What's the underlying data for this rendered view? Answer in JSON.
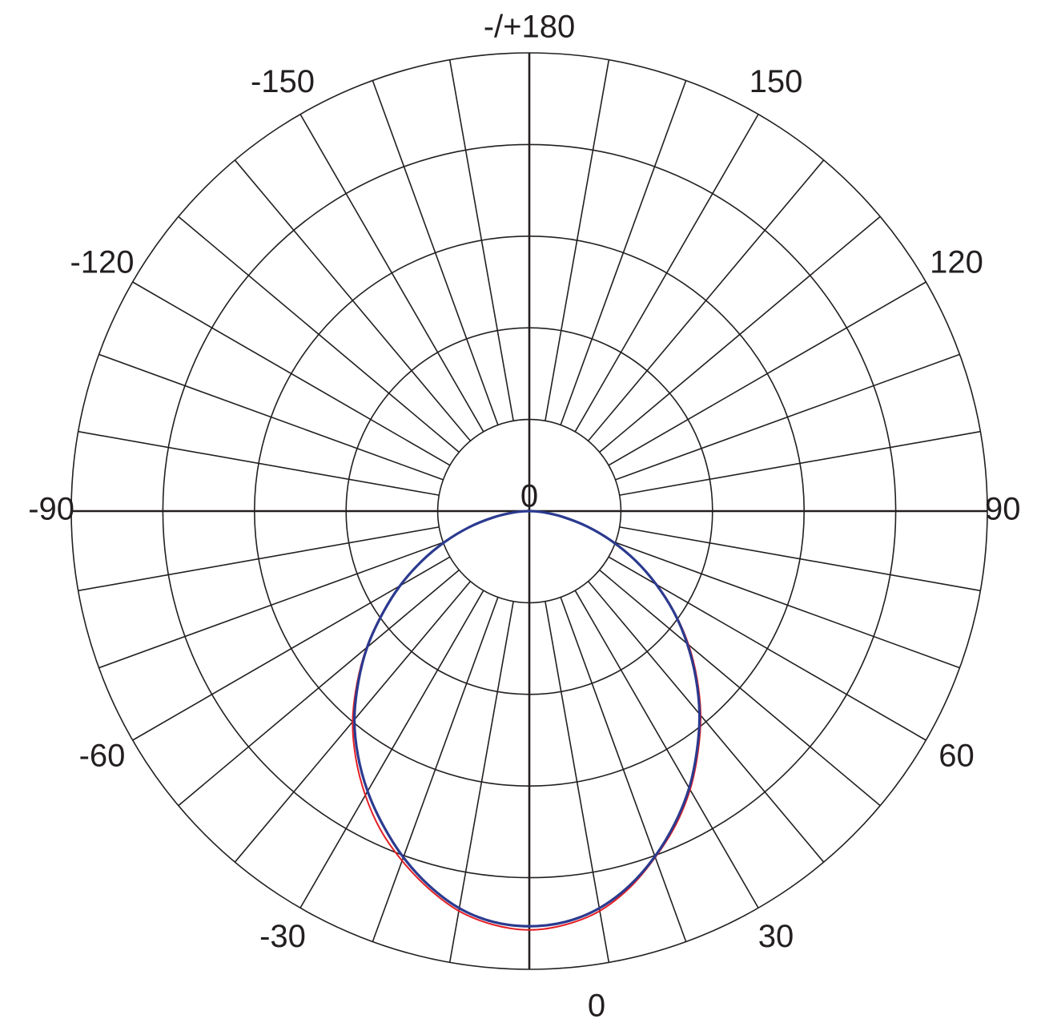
{
  "chart_data": {
    "type": "line",
    "subtype": "polar",
    "title": "",
    "grid": true,
    "legend": "none",
    "radial_range": [
      0,
      5
    ],
    "radial_rings": [
      1,
      2,
      3,
      4,
      5
    ],
    "angle_label_values": [
      0,
      30,
      60,
      90,
      120,
      150,
      180,
      -150,
      -120,
      -90,
      -60,
      -30
    ],
    "angle_labels": [
      {
        "angle": 180,
        "text": "-/+180"
      },
      {
        "angle": -150,
        "text": "-150"
      },
      {
        "angle": 150,
        "text": "150"
      },
      {
        "angle": -120,
        "text": "-120"
      },
      {
        "angle": 120,
        "text": "120"
      },
      {
        "angle": -90,
        "text": "-90"
      },
      {
        "angle": 90,
        "text": "90"
      },
      {
        "angle": -60,
        "text": "-60"
      },
      {
        "angle": 60,
        "text": "60"
      },
      {
        "angle": -30,
        "text": "-30"
      },
      {
        "angle": 30,
        "text": "30"
      },
      {
        "angle": 0,
        "text": "0"
      }
    ],
    "center_label": "0",
    "spoke_step_degrees": 10,
    "series": [
      {
        "color": "#e31e24",
        "angles": [
          0,
          5,
          10,
          15,
          20,
          25,
          30,
          35,
          40,
          45,
          50,
          55,
          60,
          65,
          70,
          75,
          80,
          85,
          90,
          -5,
          -10,
          -15,
          -20,
          -25,
          -30,
          -35,
          -40,
          -45,
          -50,
          -55,
          -60,
          -65,
          -70,
          -75,
          -80,
          -85,
          -90
        ],
        "values": [
          4.57,
          4.53,
          4.43,
          4.25,
          4.02,
          3.78,
          3.51,
          3.21,
          2.91,
          2.59,
          2.27,
          1.94,
          1.61,
          1.28,
          0.97,
          0.66,
          0.38,
          0.16,
          0.02,
          4.53,
          4.43,
          4.26,
          4.06,
          3.84,
          3.58,
          3.3,
          3.0,
          2.66,
          2.32,
          1.97,
          1.63,
          1.3,
          0.98,
          0.68,
          0.4,
          0.17,
          0.02
        ]
      },
      {
        "color": "#2b3a8f",
        "angles": [
          0,
          5,
          10,
          15,
          20,
          25,
          30,
          35,
          40,
          45,
          50,
          55,
          60,
          65,
          70,
          75,
          80,
          85,
          90,
          -5,
          -10,
          -15,
          -20,
          -25,
          -30,
          -35,
          -40,
          -45,
          -50,
          -55,
          -60,
          -65,
          -70,
          -75,
          -80,
          -85,
          -90
        ],
        "values": [
          4.53,
          4.5,
          4.4,
          4.23,
          4.01,
          3.76,
          3.49,
          3.19,
          2.89,
          2.57,
          2.25,
          1.93,
          1.6,
          1.28,
          0.96,
          0.66,
          0.38,
          0.16,
          0.02,
          4.5,
          4.4,
          4.23,
          4.02,
          3.78,
          3.53,
          3.26,
          2.97,
          2.64,
          2.31,
          1.96,
          1.63,
          1.3,
          0.98,
          0.68,
          0.4,
          0.17,
          0.02
        ]
      }
    ]
  }
}
